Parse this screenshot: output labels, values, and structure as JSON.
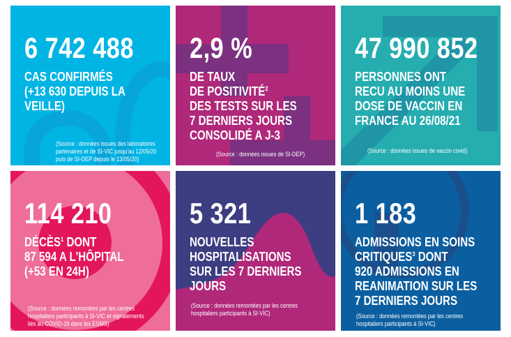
{
  "colors": {
    "cases": "#00b4e4",
    "positivity": "#b0287a",
    "vaccine": "#26adb0",
    "deaths": "#ef6d9a",
    "hosp": "#3d3d82",
    "icu": "#0b5fa0"
  },
  "tiles": [
    {
      "value": "6 742 488",
      "lines": [
        "CAS CONFIRMÉS",
        "(+13 630 DEPUIS LA",
        "VEILLE)"
      ],
      "source": [
        "(Source : données issues des laboratoires",
        "partenaires et de SI-VIC jusqu'au 12/05/20",
        "puis de SI-DEP depuis le 13/05/20)"
      ]
    },
    {
      "value": "2,9 %",
      "lines": [
        "DE TAUX",
        "DE POSITIVITÉ",
        "DES TESTS SUR LES",
        "7 DERNIERS JOURS",
        "CONSOLIDÉ A J-3"
      ],
      "sup": "2",
      "source": [
        "(Source : données issues de SI-DEP)"
      ]
    },
    {
      "value": "47 990 852",
      "lines": [
        "PERSONNES ONT",
        "RECU AU MOINS UNE",
        "DOSE DE VACCIN EN",
        "FRANCE AU 26/08/21"
      ],
      "source": [
        "(Source : données issues de vaccin covid)"
      ]
    },
    {
      "value": "114 210",
      "lines": [
        "DÉCÈS",
        " DONT",
        "87 594 A L'HÔPITAL",
        "(+53 EN 24H)"
      ],
      "sup": "1",
      "source": [
        "(Source : données remontées par les centres",
        "hospitaliers participants à SI-VIC et signalements",
        "liés au COVID-19 dans les ESMS)"
      ]
    },
    {
      "value": "5 321",
      "lines": [
        "NOUVELLES",
        "HOSPITALISATIONS",
        "SUR LES 7 DERNIERS",
        "JOURS"
      ],
      "source": [
        "(Source : données remontées par les centres",
        "hospitaliers participants à SI-VIC)"
      ]
    },
    {
      "value": "1 183",
      "lines": [
        "ADMISSIONS EN SOINS",
        "CRITIQUES",
        " DONT",
        "920 ADMISSIONS EN",
        "REANIMATION SUR LES",
        "7 DERNIERS JOURS"
      ],
      "sup": "3",
      "source": [
        "(Source : données remontées par les centres",
        "hospitaliers participants à SI-VIC)"
      ]
    }
  ]
}
